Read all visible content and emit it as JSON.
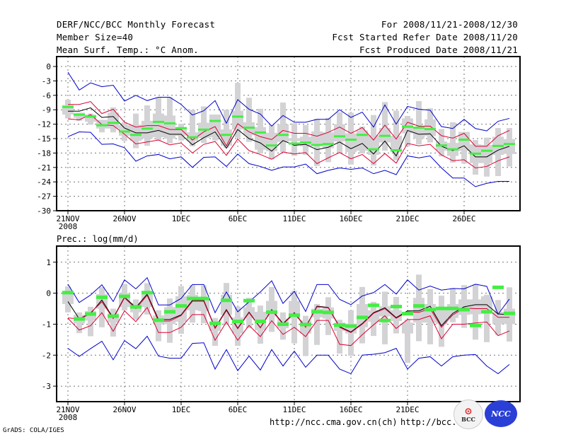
{
  "header": {
    "title": "DERF/NCC/BCC Monthly Forecast",
    "member_size": "Member Size=40",
    "variable": "Mean Surf. Temp.: °C Anom.",
    "period": "For 2008/11/21-2008/12/30",
    "started": "Fcst Started Refer Date 2008/11/20",
    "produced": "Fcst Produced Date 2008/11/21"
  },
  "footer": {
    "url1": "http://ncc.cma.gov.cn(ch)",
    "url2": "http://bcc.",
    "grads": "GrADS: COLA/IGES",
    "logo_bcc": "BCC",
    "logo_ncc": "NCC"
  },
  "colors": {
    "envelope": "#0000cc",
    "spread": "#dd0033",
    "mean": "#000000",
    "box": "#d3d3d6",
    "marker": "#44ee44"
  },
  "chart_data": [
    {
      "type": "line",
      "title": "Mean Surf. Temp.: °C Anom.",
      "xlabel": "",
      "ylabel": "",
      "ylim": [
        -30,
        2
      ],
      "yticks": [
        0,
        -3,
        -6,
        -9,
        -12,
        -15,
        -18,
        -21,
        -24,
        -27,
        -30
      ],
      "ytick_labels": [
        "0",
        "-3",
        "-6",
        "-9",
        "-12",
        "-15",
        "-18",
        "-21",
        "-24",
        "-27",
        "-30"
      ],
      "xticks": [
        {
          "day": 0,
          "label": "21NOV",
          "sublabel": "2008"
        },
        {
          "day": 5,
          "label": "26NOV"
        },
        {
          "day": 10,
          "label": "1DEC"
        },
        {
          "day": 15,
          "label": "6DEC"
        },
        {
          "day": 20,
          "label": "11DEC"
        },
        {
          "day": 25,
          "label": "16DEC"
        },
        {
          "day": 30,
          "label": "21DEC"
        },
        {
          "day": 35,
          "label": "26DEC"
        }
      ],
      "grid": true,
      "n_days": 40,
      "series": [
        {
          "name": "max",
          "color": "#0000cc",
          "values": [
            -1.2,
            -4.9,
            -3.4,
            -4.2,
            -3.9,
            -7.2,
            -6.0,
            -7.1,
            -6.4,
            -6.4,
            -7.9,
            -10.1,
            -9.2,
            -7.1,
            -11.8,
            -6.9,
            -8.9,
            -9.9,
            -12.4,
            -10.2,
            -11.6,
            -11.6,
            -11.0,
            -11.0,
            -9.0,
            -10.6,
            -9.5,
            -12.6,
            -8.0,
            -12.0,
            -8.3,
            -8.9,
            -9.1,
            -12.5,
            -12.9,
            -11.0,
            -12.9,
            -13.4,
            -11.4,
            -10.8
          ]
        },
        {
          "name": "upper",
          "color": "#dd0033",
          "values": [
            -7.9,
            -7.9,
            -7.3,
            -9.8,
            -8.9,
            -11.6,
            -12.6,
            -12.3,
            -12.3,
            -13.1,
            -13.1,
            -15.3,
            -13.6,
            -12.5,
            -16.5,
            -11.9,
            -13.6,
            -14.6,
            -15.2,
            -13.3,
            -13.9,
            -13.9,
            -14.5,
            -13.7,
            -12.6,
            -13.9,
            -12.7,
            -15.3,
            -12.2,
            -15.1,
            -11.6,
            -12.4,
            -12.4,
            -14.4,
            -14.9,
            -13.9,
            -16.6,
            -16.6,
            -14.4,
            -13.3
          ]
        },
        {
          "name": "mean",
          "color": "#000000",
          "values": [
            -9.3,
            -9.3,
            -8.6,
            -10.6,
            -10.4,
            -12.8,
            -13.8,
            -13.8,
            -13.3,
            -14.1,
            -14.1,
            -16.3,
            -14.8,
            -13.6,
            -17.0,
            -13.1,
            -15.0,
            -15.9,
            -17.6,
            -15.4,
            -16.4,
            -16.2,
            -17.3,
            -16.8,
            -15.7,
            -17.1,
            -16.0,
            -18.2,
            -15.5,
            -18.6,
            -13.3,
            -14.1,
            -14.0,
            -16.6,
            -17.5,
            -16.5,
            -18.8,
            -18.8,
            -17.4,
            -16.6
          ]
        },
        {
          "name": "lower",
          "color": "#dd0033",
          "values": [
            -10.9,
            -11.1,
            -10.0,
            -12.1,
            -12.3,
            -14.1,
            -16.1,
            -15.7,
            -15.3,
            -16.3,
            -15.9,
            -18.0,
            -16.2,
            -15.6,
            -18.5,
            -15.1,
            -17.5,
            -18.3,
            -19.3,
            -17.8,
            -18.2,
            -17.9,
            -20.2,
            -19.0,
            -17.9,
            -19.2,
            -18.3,
            -20.2,
            -18.1,
            -20.1,
            -16.0,
            -16.5,
            -16.2,
            -18.4,
            -19.6,
            -19.4,
            -21.1,
            -20.8,
            -19.6,
            -18.8
          ]
        },
        {
          "name": "min",
          "color": "#0000cc",
          "values": [
            -14.6,
            -13.6,
            -13.7,
            -16.2,
            -16.1,
            -16.9,
            -19.7,
            -18.6,
            -18.3,
            -19.2,
            -18.8,
            -21.0,
            -18.9,
            -18.8,
            -20.8,
            -18.2,
            -20.2,
            -20.8,
            -21.6,
            -20.9,
            -20.9,
            -20.3,
            -22.3,
            -21.6,
            -21.1,
            -21.4,
            -21.1,
            -22.3,
            -21.6,
            -22.5,
            -18.6,
            -19.0,
            -18.6,
            -21.1,
            -23.2,
            -23.2,
            -25.0,
            -24.3,
            -23.9,
            -23.9
          ]
        }
      ],
      "box_range": {
        "outer_high": [
          -6.9,
          -9.6,
          -9.8,
          -11.1,
          -8.5,
          -11.6,
          -9.8,
          -8.1,
          -6.5,
          -6.4,
          -11.9,
          -9.0,
          -8.3,
          -10.1,
          -9.0,
          -3.4,
          -6.5,
          -8.8,
          -12.2,
          -7.5,
          -11.8,
          -12.2,
          -10.9,
          -10.7,
          -9.5,
          -9.6,
          -12.5,
          -10.1,
          -7.4,
          -9.2,
          -10.3,
          -7.2,
          -8.7,
          -13.0,
          -11.6,
          -14.6,
          -15.3,
          -14.8,
          -12.8,
          -12.8
        ],
        "outer_low": [
          -10.8,
          -11.3,
          -12.1,
          -13.7,
          -13.7,
          -15.5,
          -17.0,
          -16.5,
          -15.4,
          -16.0,
          -15.4,
          -16.6,
          -15.9,
          -15.4,
          -16.9,
          -14.8,
          -15.7,
          -18.1,
          -19.3,
          -17.8,
          -18.6,
          -18.4,
          -20.7,
          -19.9,
          -17.9,
          -20.4,
          -18.1,
          -20.6,
          -17.5,
          -19.5,
          -16.6,
          -16.2,
          -15.8,
          -18.7,
          -20.0,
          -20.2,
          -22.5,
          -22.9,
          -22.8,
          -20.8
        ],
        "inner_high": [
          -8.0,
          -9.6,
          -10.0,
          -11.1,
          -9.6,
          -12.2,
          -12.1,
          -11.3,
          -9.8,
          -10.2,
          -12.6,
          -13.7,
          -11.7,
          -10.0,
          -13.1,
          -9.2,
          -11.6,
          -12.6,
          -13.8,
          -12.0,
          -14.9,
          -14.6,
          -13.5,
          -13.7,
          -12.0,
          -13.9,
          -13.3,
          -14.3,
          -12.8,
          -14.4,
          -10.8,
          -12.8,
          -11.0,
          -15.6,
          -15.9,
          -13.6,
          -16.2,
          -16.3,
          -14.6,
          -15.1
        ],
        "inner_low": [
          -10.0,
          -10.7,
          -11.5,
          -12.9,
          -12.9,
          -14.4,
          -15.5,
          -15.0,
          -14.7,
          -15.0,
          -14.4,
          -15.5,
          -14.9,
          -14.7,
          -16.5,
          -13.1,
          -14.3,
          -17.3,
          -17.6,
          -15.7,
          -15.5,
          -16.6,
          -16.3,
          -17.0,
          -15.6,
          -17.8,
          -17.5,
          -18.4,
          -15.8,
          -17.8,
          -13.9,
          -15.0,
          -14.5,
          -17.5,
          -18.6,
          -17.6,
          -20.1,
          -20.1,
          -18.4,
          -18.2
        ],
        "marker": [
          -8.5,
          -10.1,
          -10.5,
          -12.3,
          -11.8,
          -13.6,
          -14.3,
          -13.0,
          -11.6,
          -11.9,
          -12.9,
          -14.8,
          -13.2,
          -11.4,
          -14.3,
          -10.5,
          -12.8,
          -13.8,
          -16.5,
          -14.3,
          -16.1,
          -15.9,
          -16.4,
          -16.2,
          -14.6,
          -15.3,
          -14.3,
          -17.3,
          -14.5,
          -17.5,
          -12.6,
          -12.8,
          -13.1,
          -16.5,
          -17.3,
          -15.3,
          -18.2,
          -17.6,
          -16.6,
          -16.2
        ]
      }
    },
    {
      "type": "line",
      "title": "Prec.: log(mm/d)",
      "xlabel": "",
      "ylabel": "",
      "ylim": [
        -3.5,
        1.5
      ],
      "yticks": [
        1,
        0,
        -1,
        -2,
        -3
      ],
      "ytick_labels": [
        "1",
        "0",
        "-1",
        "-2",
        "-3"
      ],
      "xticks": [
        {
          "day": 0,
          "label": "21NOV",
          "sublabel": "2008"
        },
        {
          "day": 5,
          "label": "26NOV"
        },
        {
          "day": 10,
          "label": "1DEC"
        },
        {
          "day": 15,
          "label": "6DEC"
        },
        {
          "day": 20,
          "label": "11DEC"
        },
        {
          "day": 25,
          "label": "16DEC"
        },
        {
          "day": 30,
          "label": "21DEC"
        }
      ],
      "grid": true,
      "n_days": 40,
      "series": [
        {
          "name": "max",
          "color": "#0000cc",
          "values": [
            0.29,
            -0.3,
            -0.06,
            0.27,
            -0.27,
            0.43,
            0.14,
            0.5,
            -0.38,
            -0.38,
            -0.17,
            0.28,
            0.28,
            -0.63,
            0.04,
            -0.6,
            -0.28,
            0.04,
            0.4,
            -0.33,
            0.06,
            -0.59,
            0.28,
            0.28,
            -0.2,
            -0.37,
            -0.09,
            0.02,
            0.28,
            -0.03,
            0.43,
            0.1,
            0.23,
            0.1,
            0.15,
            0.14,
            0.29,
            0.22,
            -0.68,
            -0.19
          ]
        },
        {
          "name": "mean",
          "color": "#000000",
          "values": [
            -0.27,
            -0.83,
            -0.66,
            -0.22,
            -0.8,
            -0.13,
            -0.46,
            -0.03,
            -0.85,
            -0.85,
            -0.7,
            -0.23,
            -0.23,
            -1.12,
            -0.53,
            -1.13,
            -0.61,
            -1.11,
            -0.53,
            -0.98,
            -0.63,
            -1.09,
            -0.42,
            -0.46,
            -1.08,
            -1.25,
            -0.98,
            -0.63,
            -0.47,
            -0.79,
            -0.57,
            -0.57,
            -0.42,
            -1.05,
            -0.65,
            -0.44,
            -0.37,
            -0.37,
            -0.67,
            -0.69
          ]
        },
        {
          "name": "upper",
          "color": "#dd0033",
          "values": [
            -0.8,
            -0.83,
            -0.63,
            -0.28,
            -0.82,
            -0.15,
            -0.5,
            -0.07,
            -0.9,
            -0.9,
            -0.72,
            -0.26,
            -0.26,
            -1.14,
            -0.56,
            -1.15,
            -0.63,
            -1.12,
            -0.55,
            -1.0,
            -0.65,
            -1.1,
            -0.44,
            -0.47,
            -1.1,
            -1.27,
            -1.0,
            -0.65,
            -0.5,
            -0.81,
            -0.6,
            -0.62,
            -0.5,
            -1.1,
            -0.7,
            -0.48,
            -0.5,
            -0.5,
            -0.78,
            -0.78
          ]
        },
        {
          "name": "lower",
          "color": "#dd0033",
          "values": [
            -0.81,
            -1.19,
            -1.05,
            -0.63,
            -1.23,
            -0.57,
            -0.92,
            -0.46,
            -1.27,
            -1.27,
            -1.1,
            -0.69,
            -0.69,
            -1.52,
            -0.93,
            -1.52,
            -1.04,
            -1.4,
            -0.89,
            -1.33,
            -1.1,
            -1.4,
            -0.88,
            -0.88,
            -1.65,
            -1.69,
            -1.34,
            -1.02,
            -0.73,
            -1.14,
            -0.85,
            -0.85,
            -0.73,
            -1.47,
            -1.0,
            -1.0,
            -0.96,
            -0.93,
            -1.37,
            -1.22
          ]
        },
        {
          "name": "min",
          "color": "#0000cc",
          "values": [
            -1.78,
            -2.04,
            -1.79,
            -1.55,
            -2.15,
            -1.53,
            -1.79,
            -1.39,
            -2.03,
            -2.1,
            -2.1,
            -1.62,
            -1.6,
            -2.45,
            -1.82,
            -2.5,
            -2.03,
            -2.48,
            -1.82,
            -2.35,
            -1.87,
            -2.39,
            -2.0,
            -2.0,
            -2.45,
            -2.6,
            -2.0,
            -1.97,
            -1.92,
            -1.78,
            -2.45,
            -2.1,
            -2.05,
            -2.35,
            -2.05,
            -2.0,
            -1.98,
            -2.35,
            -2.6,
            -2.3
          ]
        }
      ],
      "box_range": {
        "outer_high": [
          0.22,
          -0.62,
          -0.44,
          0.2,
          -0.5,
          0.3,
          -0.2,
          0.32,
          -0.55,
          -0.17,
          0.23,
          0.26,
          0.25,
          -0.8,
          0.33,
          -0.43,
          -0.15,
          -0.4,
          0.2,
          -0.62,
          0.08,
          -0.73,
          -0.35,
          -0.13,
          -0.86,
          -0.55,
          0.2,
          -0.28,
          0.05,
          -0.12,
          -0.85,
          0.6,
          0.13,
          -0.08,
          0.14,
          0.26,
          0.28,
          -0.05,
          -0.22,
          0.19
        ],
        "outer_low": [
          -0.62,
          -1.29,
          -1.39,
          -1.1,
          -1.4,
          -0.56,
          -0.86,
          -0.69,
          -1.55,
          -1.6,
          -1.31,
          -0.95,
          -0.97,
          -1.7,
          -1.03,
          -1.7,
          -1.13,
          -1.63,
          -1.25,
          -1.5,
          -1.62,
          -2.03,
          -1.67,
          -1.35,
          -1.95,
          -2.02,
          -1.62,
          -1.38,
          -1.65,
          -1.3,
          -2.25,
          -1.55,
          -1.65,
          -1.73,
          -0.94,
          -1.12,
          -1.5,
          -1.58,
          -1.35,
          -1.56
        ],
        "inner_high": [
          0.05,
          -0.7,
          -0.58,
          -0.03,
          -0.65,
          0.0,
          -0.32,
          0.0,
          -0.72,
          -0.45,
          -0.1,
          -0.05,
          -0.12,
          -0.92,
          -0.05,
          -0.78,
          -0.45,
          -0.6,
          -0.25,
          -0.82,
          -0.25,
          -0.88,
          -0.5,
          -0.46,
          -0.95,
          -0.98,
          -0.35,
          -0.55,
          -0.42,
          -0.55,
          -0.95,
          -0.15,
          -0.35,
          -0.45,
          -0.35,
          -0.2,
          -0.2,
          -0.1,
          -0.6,
          -0.5
        ],
        "inner_low": [
          -0.35,
          -0.98,
          -0.88,
          -0.5,
          -0.95,
          -0.45,
          -0.62,
          -0.45,
          -1.0,
          -1.0,
          -0.92,
          -0.55,
          -0.58,
          -1.22,
          -0.7,
          -1.3,
          -0.8,
          -1.2,
          -0.75,
          -1.13,
          -0.82,
          -1.3,
          -0.78,
          -0.82,
          -1.22,
          -1.3,
          -1.1,
          -0.92,
          -0.75,
          -0.9,
          -1.3,
          -0.95,
          -0.95,
          -1.0,
          -0.8,
          -0.7,
          -0.68,
          -0.6,
          -1.0,
          -1.0
        ],
        "marker": [
          0.03,
          -0.82,
          -0.66,
          -0.12,
          -0.73,
          -0.09,
          -0.43,
          0.03,
          -0.86,
          -0.59,
          -0.4,
          -0.16,
          -0.16,
          -0.96,
          -0.22,
          -0.9,
          -0.23,
          -0.9,
          -0.6,
          -0.99,
          -0.7,
          -1.0,
          -0.59,
          -0.61,
          -1.02,
          -1.05,
          -0.77,
          -0.38,
          -0.87,
          -0.42,
          -0.65,
          -0.4,
          -0.52,
          -0.48,
          -0.48,
          -0.52,
          -1.03,
          -0.59,
          0.2,
          -0.64
        ]
      }
    }
  ]
}
